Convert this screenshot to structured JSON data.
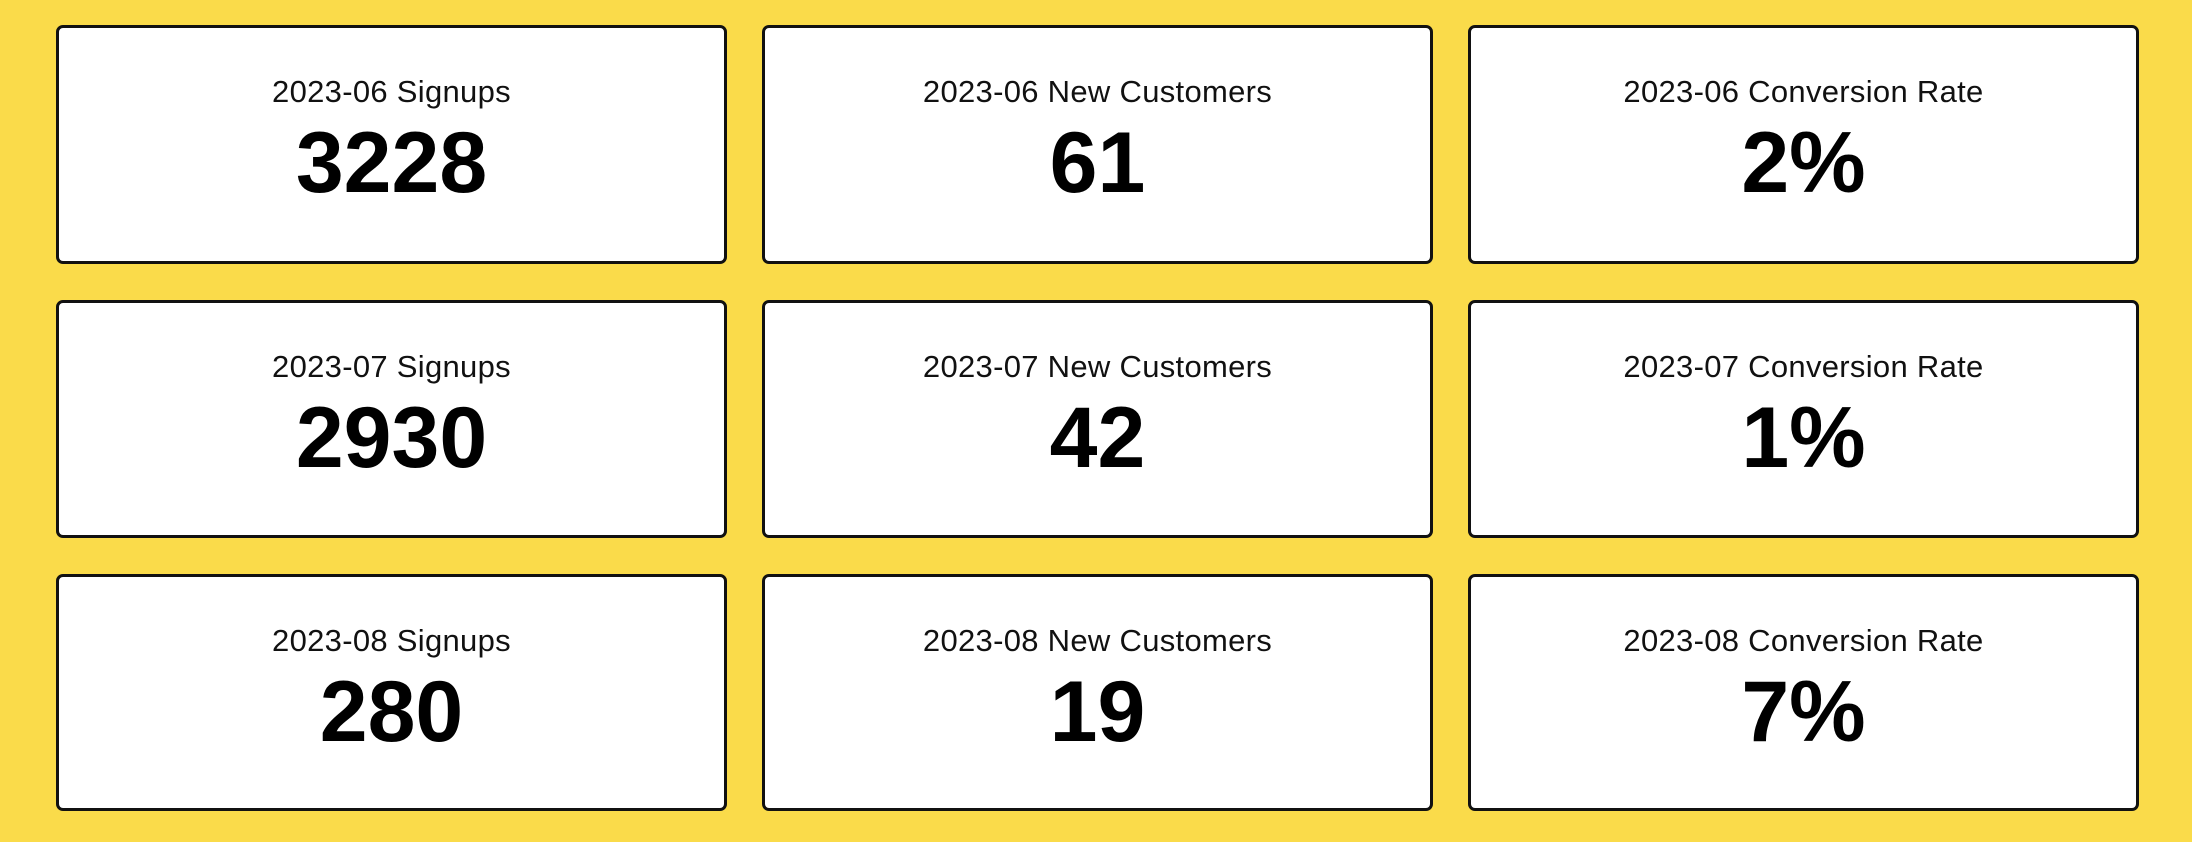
{
  "background_color": "#FADB4A",
  "cards": [
    {
      "label": "2023-06 Signups",
      "value": "3228"
    },
    {
      "label": "2023-06 New Customers",
      "value": "61"
    },
    {
      "label": "2023-06 Conversion Rate",
      "value": "2%"
    },
    {
      "label": "2023-07 Signups",
      "value": "2930"
    },
    {
      "label": "2023-07 New Customers",
      "value": "42"
    },
    {
      "label": "2023-07 Conversion Rate",
      "value": "1%"
    },
    {
      "label": "2023-08 Signups",
      "value": "280"
    },
    {
      "label": "2023-08 New Customers",
      "value": "19"
    },
    {
      "label": "2023-08 Conversion Rate",
      "value": "7%"
    }
  ]
}
